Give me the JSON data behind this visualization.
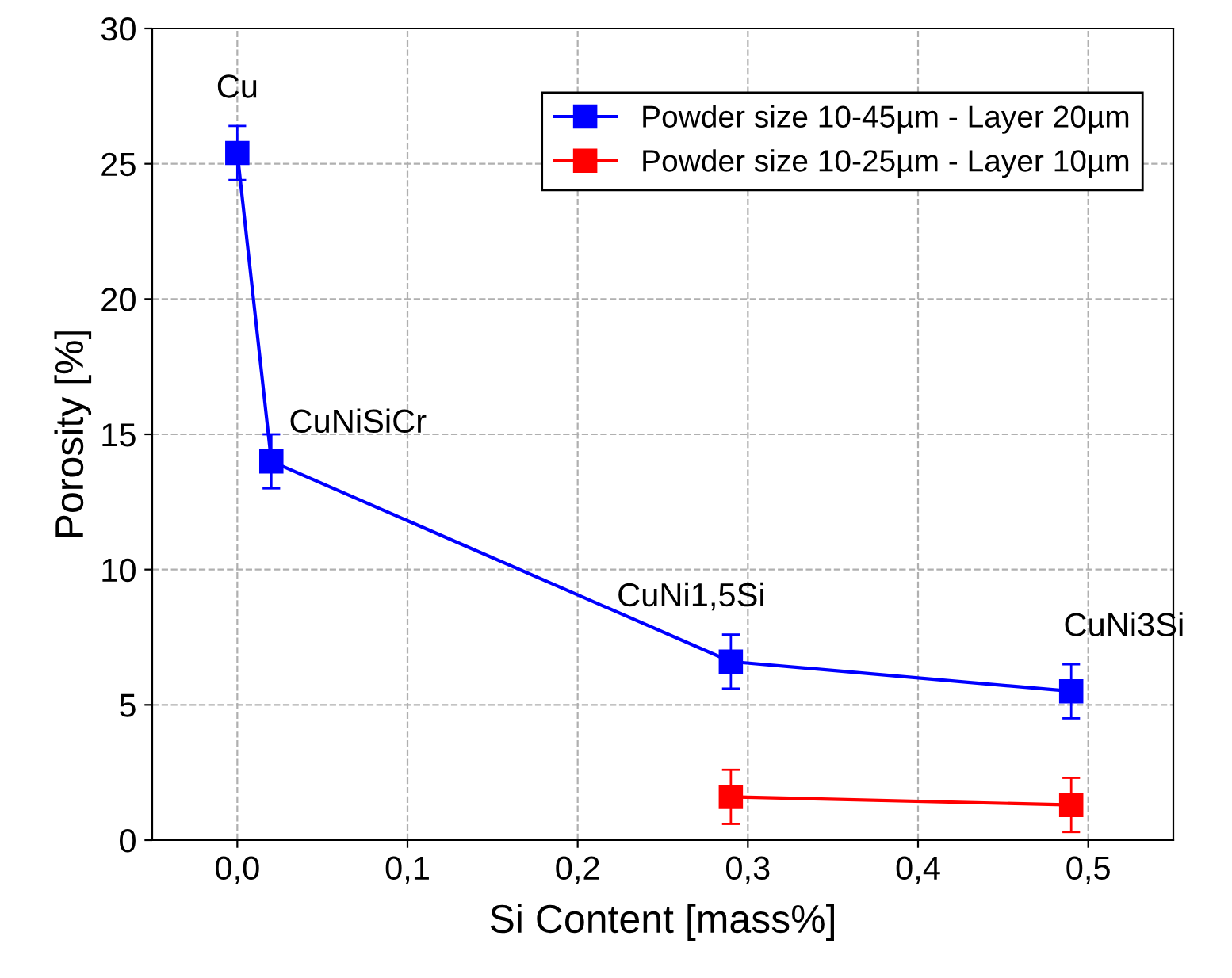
{
  "chart_data": {
    "type": "line",
    "xlabel": "Si Content [mass%]",
    "ylabel": "Porosity [%]",
    "xlim": [
      -0.05,
      0.55
    ],
    "xticks": [
      {
        "value": 0,
        "label": "0,0"
      },
      {
        "value": 0.1,
        "label": "0,1"
      },
      {
        "value": 0.2,
        "label": "0,2"
      },
      {
        "value": 0.3,
        "label": "0,3"
      },
      {
        "value": 0.4,
        "label": "0,4"
      },
      {
        "value": 0.5,
        "label": "0,5"
      }
    ],
    "ylim": [
      0,
      30
    ],
    "yticks": [
      0,
      5,
      10,
      15,
      20,
      25,
      30
    ],
    "grid": true,
    "legend": "top right",
    "marker": "square",
    "line_style": "solid",
    "series": [
      {
        "name": "Powder size 10-45µm - Layer 20µm",
        "color": "#0000ff",
        "x": [
          0,
          0.02,
          0.29,
          0.49
        ],
        "values": [
          25.4,
          14.0,
          6.6,
          5.5
        ],
        "errors": [
          1,
          1,
          1,
          1
        ]
      },
      {
        "name": "Powder size 10-25µm - Layer 10µm",
        "color": "#ff0000",
        "x": [
          0.29,
          0.49
        ],
        "values": [
          1.6,
          1.3
        ],
        "errors": [
          1,
          1
        ]
      }
    ],
    "annotations": [
      {
        "text": "Cu",
        "x": 0,
        "y": 25.4
      },
      {
        "text": "CuNiSiCr",
        "x": 0.02,
        "y": 14.0
      },
      {
        "text": "CuNi1,5Si",
        "x": 0.29,
        "y": 6.6
      },
      {
        "text": "CuNi3Si",
        "x": 0.49,
        "y": 5.5
      }
    ]
  }
}
